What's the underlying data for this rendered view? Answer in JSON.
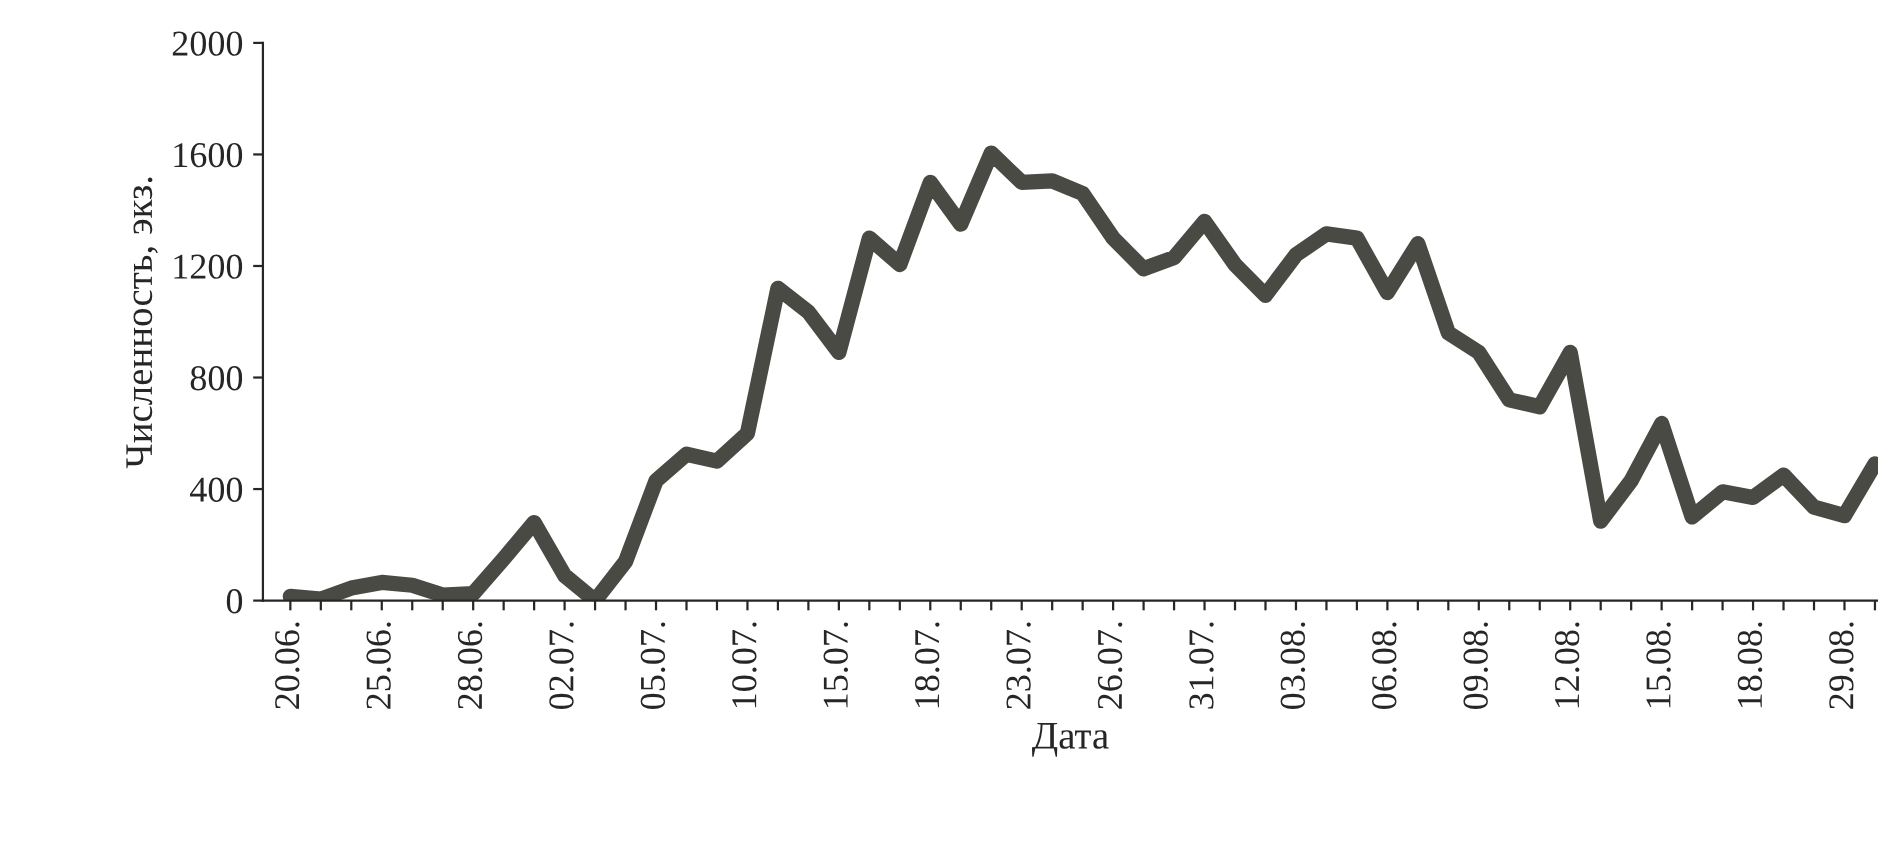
{
  "chart_data": {
    "type": "line",
    "xlabel": "Дата",
    "ylabel": "Численность, экз.",
    "categories": [
      "20.06.",
      null,
      null,
      "25.06.",
      null,
      null,
      "28.06.",
      null,
      null,
      "02.07.",
      null,
      null,
      "05.07.",
      null,
      null,
      "10.07.",
      null,
      null,
      "15.07.",
      null,
      null,
      "18.07.",
      null,
      null,
      "23.07.",
      null,
      null,
      "26.07.",
      null,
      null,
      "31.07.",
      null,
      null,
      "03.08.",
      null,
      null,
      "06.08.",
      null,
      null,
      "09.08.",
      null,
      null,
      "12.08.",
      null,
      null,
      "15.08.",
      null,
      null,
      "18.08.",
      null,
      null,
      "29.08.",
      null
    ],
    "series": [
      {
        "color": "#4a4a44",
        "values": [
          15,
          5,
          45,
          65,
          55,
          20,
          25,
          150,
          280,
          90,
          0,
          140,
          430,
          525,
          500,
          600,
          1120,
          1035,
          890,
          1300,
          1205,
          1500,
          1350,
          1605,
          1500,
          1505,
          1460,
          1300,
          1190,
          1230,
          1360,
          1205,
          1095,
          1240,
          1315,
          1300,
          1105,
          1280,
          960,
          890,
          720,
          695,
          890,
          285,
          430,
          635,
          300,
          390,
          370,
          450,
          335,
          305,
          490
        ]
      }
    ],
    "ylim": [
      0,
      2000
    ],
    "yticks": [
      0,
      400,
      800,
      1200,
      1600,
      2000
    ],
    "grid": false,
    "legend": false,
    "marker": "none",
    "line_style": "solid"
  }
}
